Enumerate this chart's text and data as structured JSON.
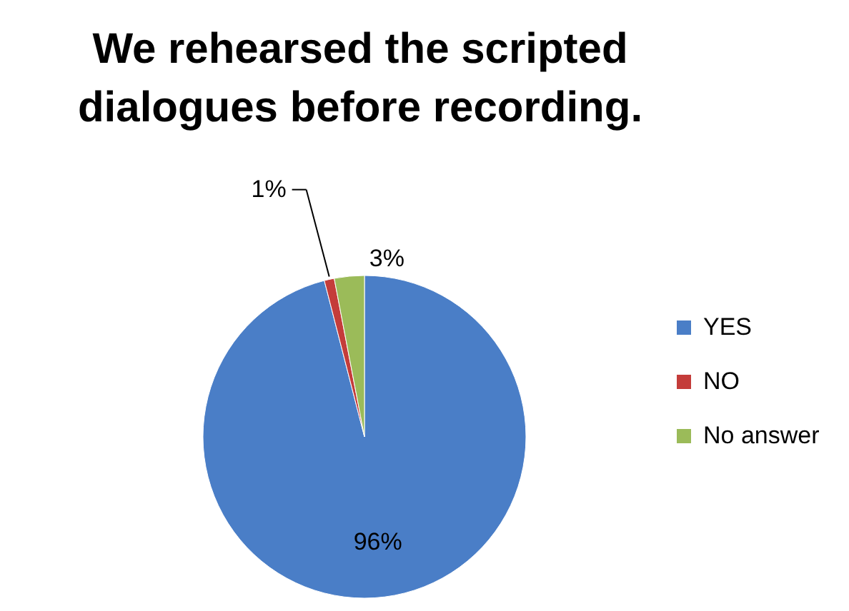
{
  "chart_data": {
    "type": "pie",
    "title": "We rehearsed the scripted dialogues before recording.",
    "categories": [
      "YES",
      "NO",
      "No answer"
    ],
    "values": [
      96,
      1,
      3
    ],
    "colors": [
      "#4A7EC7",
      "#C43C3A",
      "#9BBB59"
    ],
    "value_labels": [
      "96%",
      "1%",
      "3%"
    ],
    "legend": "right"
  }
}
